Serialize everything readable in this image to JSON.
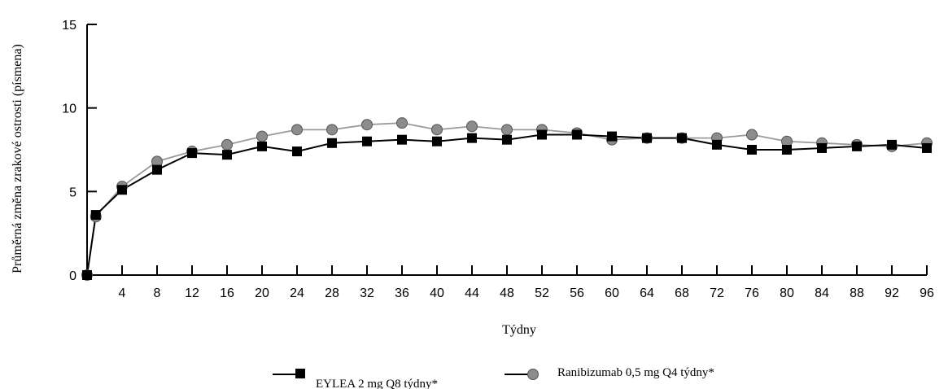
{
  "chart_data": {
    "type": "line",
    "xlabel": "Týdny",
    "ylabel": "Průměrná změna zrakové ostrosti (písmena)",
    "xlim": [
      0,
      96
    ],
    "ylim": [
      0,
      15
    ],
    "x_ticks": [
      4,
      8,
      12,
      16,
      20,
      24,
      28,
      32,
      36,
      40,
      44,
      48,
      52,
      56,
      60,
      64,
      68,
      72,
      76,
      80,
      84,
      88,
      92,
      96
    ],
    "y_ticks": [
      0,
      5,
      10,
      15
    ],
    "grid": false,
    "legend_position": "bottom",
    "series": [
      {
        "name": "EYLEA 2 mg Q8 týdny*",
        "marker": "square",
        "color": "#000000",
        "marker_color": "#000000",
        "x": [
          0,
          1,
          4,
          8,
          12,
          16,
          20,
          24,
          28,
          32,
          36,
          40,
          44,
          48,
          52,
          56,
          60,
          64,
          68,
          72,
          76,
          80,
          84,
          88,
          92,
          96
        ],
        "y": [
          0,
          3.6,
          5.1,
          6.3,
          7.3,
          7.2,
          7.7,
          7.4,
          7.9,
          8.0,
          8.1,
          8.0,
          8.2,
          8.1,
          8.4,
          8.4,
          8.3,
          8.2,
          8.2,
          7.8,
          7.5,
          7.5,
          7.6,
          7.7,
          7.8,
          7.6
        ]
      },
      {
        "name": "Ranibizumab 0,5 mg  Q4 týdny*",
        "marker": "circle",
        "color": "#9a9a9a",
        "marker_color": "#8c8c8c",
        "x": [
          0,
          1,
          4,
          8,
          12,
          16,
          20,
          24,
          28,
          32,
          36,
          40,
          44,
          48,
          52,
          56,
          60,
          64,
          68,
          72,
          76,
          80,
          84,
          88,
          92,
          96
        ],
        "y": [
          0,
          3.5,
          5.3,
          6.8,
          7.4,
          7.8,
          8.3,
          8.7,
          8.7,
          9.0,
          9.1,
          8.7,
          8.9,
          8.7,
          8.7,
          8.5,
          8.1,
          8.2,
          8.2,
          8.2,
          8.4,
          8.0,
          7.9,
          7.8,
          7.7,
          7.9
        ]
      }
    ]
  }
}
